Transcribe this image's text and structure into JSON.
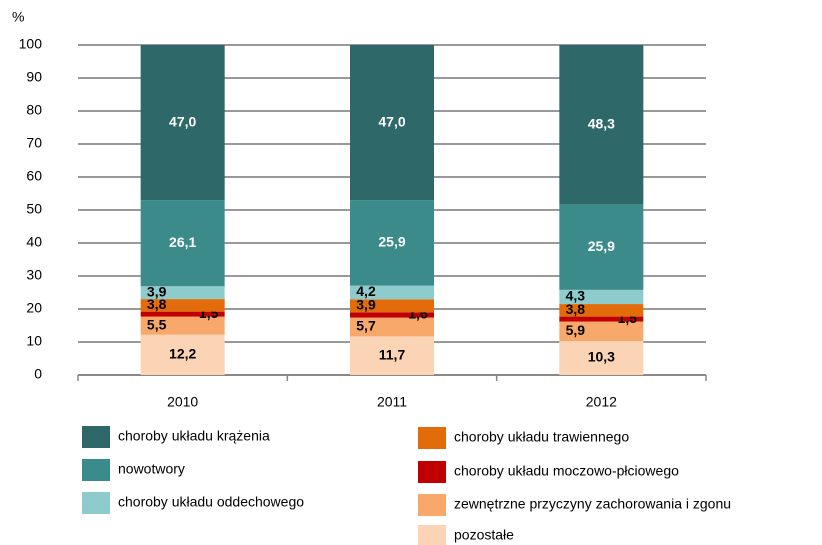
{
  "chart_data": {
    "type": "stacked_bar",
    "y_label": "%",
    "categories": [
      "2010",
      "2011",
      "2012"
    ],
    "series": [
      {
        "name": "choroby układu krążenia",
        "color": "#2f6868",
        "values": [
          47.0,
          47.0,
          48.3
        ],
        "value_labels": [
          "47,0",
          "47,0",
          "48,3"
        ]
      },
      {
        "name": "nowotwory",
        "color": "#3c8b8b",
        "values": [
          26.1,
          25.9,
          25.9
        ],
        "value_labels": [
          "26,1",
          "25,9",
          "25,9"
        ]
      },
      {
        "name": "choroby układu oddechowego",
        "color": "#8ecbcd",
        "values": [
          3.9,
          4.2,
          4.3
        ],
        "value_labels": [
          "3,9",
          "4,2",
          "4,3"
        ]
      },
      {
        "name": "choroby układu trawiennego",
        "color": "#e36c0a",
        "values": [
          3.8,
          3.9,
          3.8
        ],
        "value_labels": [
          "3,8",
          "3,9",
          "3,8"
        ]
      },
      {
        "name": "choroby układu moczowo-płciowego",
        "color": "#c00000",
        "values": [
          1.5,
          1.6,
          1.5
        ],
        "value_labels": [
          "1,5",
          "1,6",
          "1,5"
        ]
      },
      {
        "name": "zewnętrzne przyczyny zachorowania i zgonu",
        "color": "#f9a86b",
        "values": [
          5.5,
          5.7,
          5.9
        ],
        "value_labels": [
          "5,5",
          "5,7",
          "5,9"
        ]
      },
      {
        "name": "pozostałe",
        "color": "#fbd4b6",
        "values": [
          12.2,
          11.7,
          10.3
        ],
        "value_labels": [
          "12,2",
          "11,7",
          "10,3"
        ]
      }
    ],
    "ylim": [
      0,
      100
    ],
    "yticks": [
      0,
      10,
      20,
      30,
      40,
      50,
      60,
      70,
      80,
      90,
      100
    ],
    "grid": true
  }
}
